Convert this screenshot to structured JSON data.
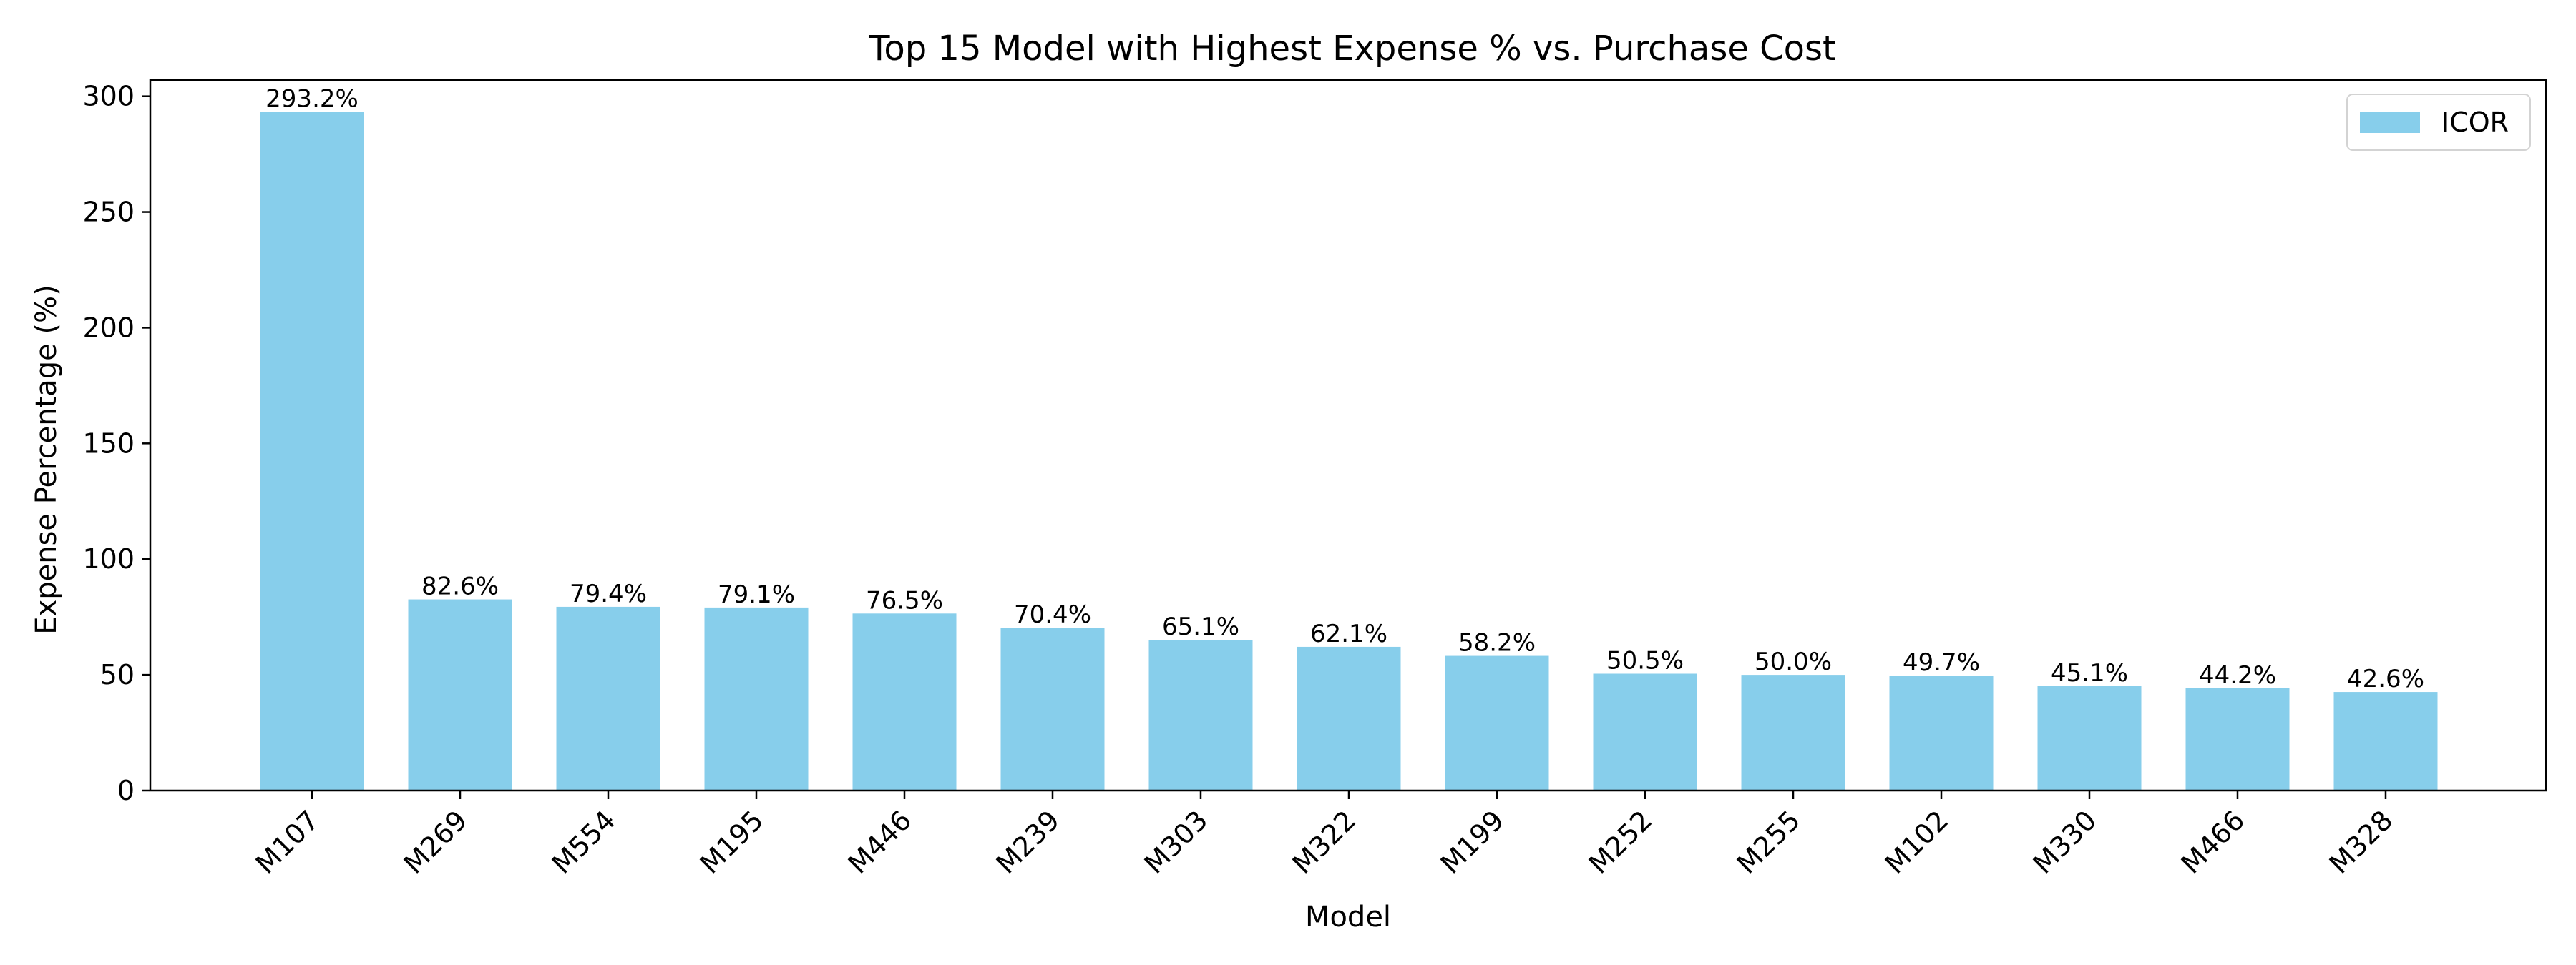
{
  "chart_data": {
    "type": "bar",
    "title": "Top 15 Model with Highest Expense % vs. Purchase Cost",
    "xlabel": "Model",
    "ylabel": "Expense Percentage (%)",
    "categories": [
      "M107",
      "M269",
      "M554",
      "M195",
      "M446",
      "M239",
      "M303",
      "M322",
      "M199",
      "M252",
      "M255",
      "M102",
      "M330",
      "M466",
      "M328"
    ],
    "series": [
      {
        "name": "ICOR",
        "color": "#87CEEB",
        "values": [
          293.2,
          82.6,
          79.4,
          79.1,
          76.5,
          70.4,
          65.1,
          62.1,
          58.2,
          50.5,
          50.0,
          49.7,
          45.1,
          44.2,
          42.6
        ],
        "labels": [
          "293.2%",
          "82.6%",
          "79.4%",
          "79.1%",
          "76.5%",
          "70.4%",
          "65.1%",
          "62.1%",
          "58.2%",
          "50.5%",
          "50.0%",
          "49.7%",
          "45.1%",
          "44.2%",
          "42.6%"
        ]
      }
    ],
    "ylim": [
      0,
      307
    ],
    "yticks": [
      0,
      50,
      100,
      150,
      200,
      250,
      300
    ],
    "grid": false,
    "legend": "top-right"
  }
}
